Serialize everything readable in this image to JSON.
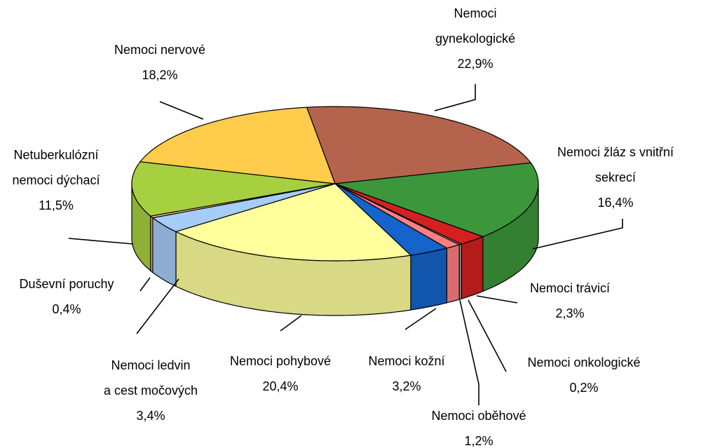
{
  "chart_data": {
    "type": "pie3d",
    "categories": [
      [
        "Nemoci",
        "gynekologické"
      ],
      [
        "Nemoci žláz s vnitřní",
        "sekrecí"
      ],
      [
        "Nemoci trávicí"
      ],
      [
        "Nemoci onkologické"
      ],
      [
        "Nemoci oběhové"
      ],
      [
        "Nemoci kožní"
      ],
      [
        "Nemoci pohybové"
      ],
      [
        "Nemoci ledvin",
        "a cest močových"
      ],
      [
        "Duševní poruchy"
      ],
      [
        "Netuberkulózní",
        "nemoci dýchací"
      ],
      [
        "Nemoci nervové"
      ]
    ],
    "values": [
      22.9,
      16.4,
      2.3,
      0.2,
      1.2,
      3.2,
      20.4,
      3.4,
      0.4,
      11.5,
      18.2
    ],
    "value_labels": [
      "22,9%",
      "16,4%",
      "2,3%",
      "0,2%",
      "1,2%",
      "3,2%",
      "20,4%",
      "3,4%",
      "0,4%",
      "11,5%",
      "18,2%"
    ],
    "colors": [
      "#b4644c",
      "#3c963c",
      "#d42020",
      "#c0c0c0",
      "#ff8080",
      "#1464cc",
      "#ffff9c",
      "#a6ccf8",
      "#ffc08c",
      "#a6d040",
      "#ffcc4c"
    ]
  }
}
